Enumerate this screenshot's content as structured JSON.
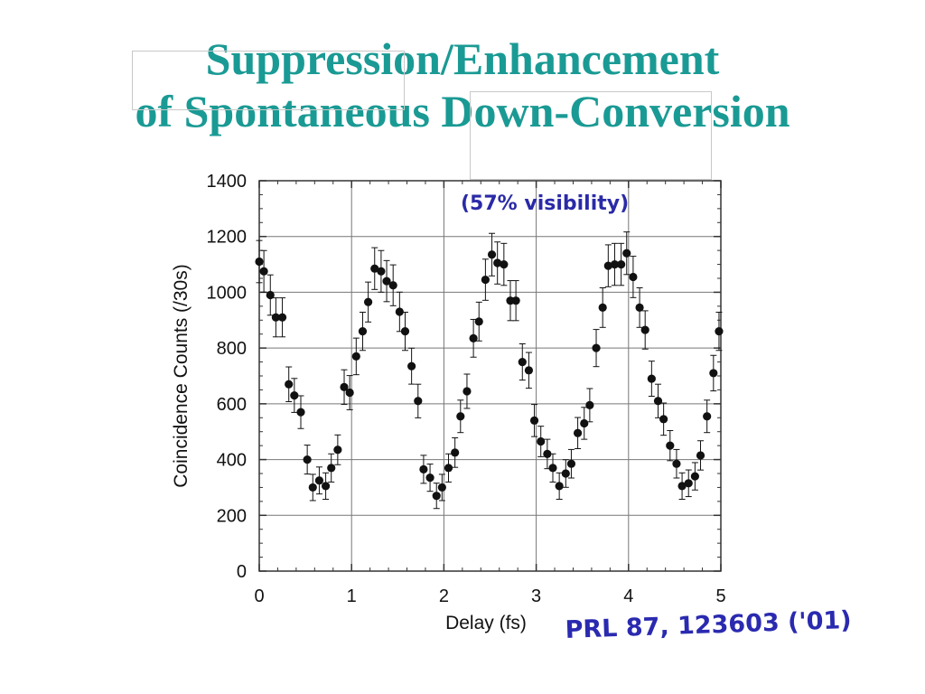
{
  "slide": {
    "title_line1": "Suppression/Enhancement",
    "title_line2": "of Spontaneous Down-Conversion"
  },
  "colors": {
    "title": "#1a9a94",
    "annotation": "#2a2aa8",
    "points": "#111111"
  },
  "chart_data": {
    "type": "scatter",
    "title": "",
    "xlabel": "Delay (fs)",
    "ylabel": "Coincidence Counts (/30s)",
    "xlim": [
      0,
      5
    ],
    "ylim": [
      0,
      1400
    ],
    "x_ticks": [
      "0",
      "1",
      "2",
      "3",
      "4",
      "5"
    ],
    "y_ticks": [
      "0",
      "200",
      "400",
      "600",
      "800",
      "1000",
      "1200",
      "1400"
    ],
    "grid": true,
    "error_bars": true,
    "annotation": "(57% visibility)",
    "citation": "PRL 87, 123603 ('01)",
    "series": [
      {
        "x": [
          0.0,
          0.05,
          0.12,
          0.18,
          0.25,
          0.32,
          0.38,
          0.45,
          0.52,
          0.58,
          0.65,
          0.72,
          0.78,
          0.85,
          0.92,
          0.98,
          1.05,
          1.12,
          1.18,
          1.25,
          1.32,
          1.38,
          1.45,
          1.52,
          1.58,
          1.65,
          1.72,
          1.78,
          1.85,
          1.92,
          1.98,
          2.05,
          2.12,
          2.18,
          2.25,
          2.32,
          2.38,
          2.45,
          2.52,
          2.58,
          2.65,
          2.72,
          2.78,
          2.85,
          2.92,
          2.98,
          3.05,
          3.12,
          3.18,
          3.25,
          3.32,
          3.38,
          3.45,
          3.52,
          3.58,
          3.65,
          3.72,
          3.78,
          3.85,
          3.92,
          3.98,
          4.05,
          4.12,
          4.18,
          4.25,
          4.32,
          4.38,
          4.45,
          4.52,
          4.58,
          4.65,
          4.72,
          4.78,
          4.85,
          4.92,
          4.98
        ],
        "y": [
          1110,
          1075,
          990,
          910,
          910,
          670,
          630,
          570,
          400,
          300,
          325,
          305,
          370,
          435,
          660,
          640,
          770,
          860,
          965,
          1085,
          1075,
          1040,
          1025,
          930,
          860,
          735,
          610,
          365,
          335,
          270,
          300,
          370,
          425,
          555,
          645,
          835,
          895,
          1045,
          1135,
          1105,
          1100,
          970,
          970,
          750,
          720,
          540,
          465,
          420,
          370,
          305,
          350,
          385,
          495,
          530,
          595,
          800,
          945,
          1095,
          1100,
          1100,
          1140,
          1055,
          945,
          865,
          690,
          610,
          545,
          450,
          385,
          305,
          315,
          340,
          415,
          555,
          710,
          860
        ]
      }
    ]
  }
}
